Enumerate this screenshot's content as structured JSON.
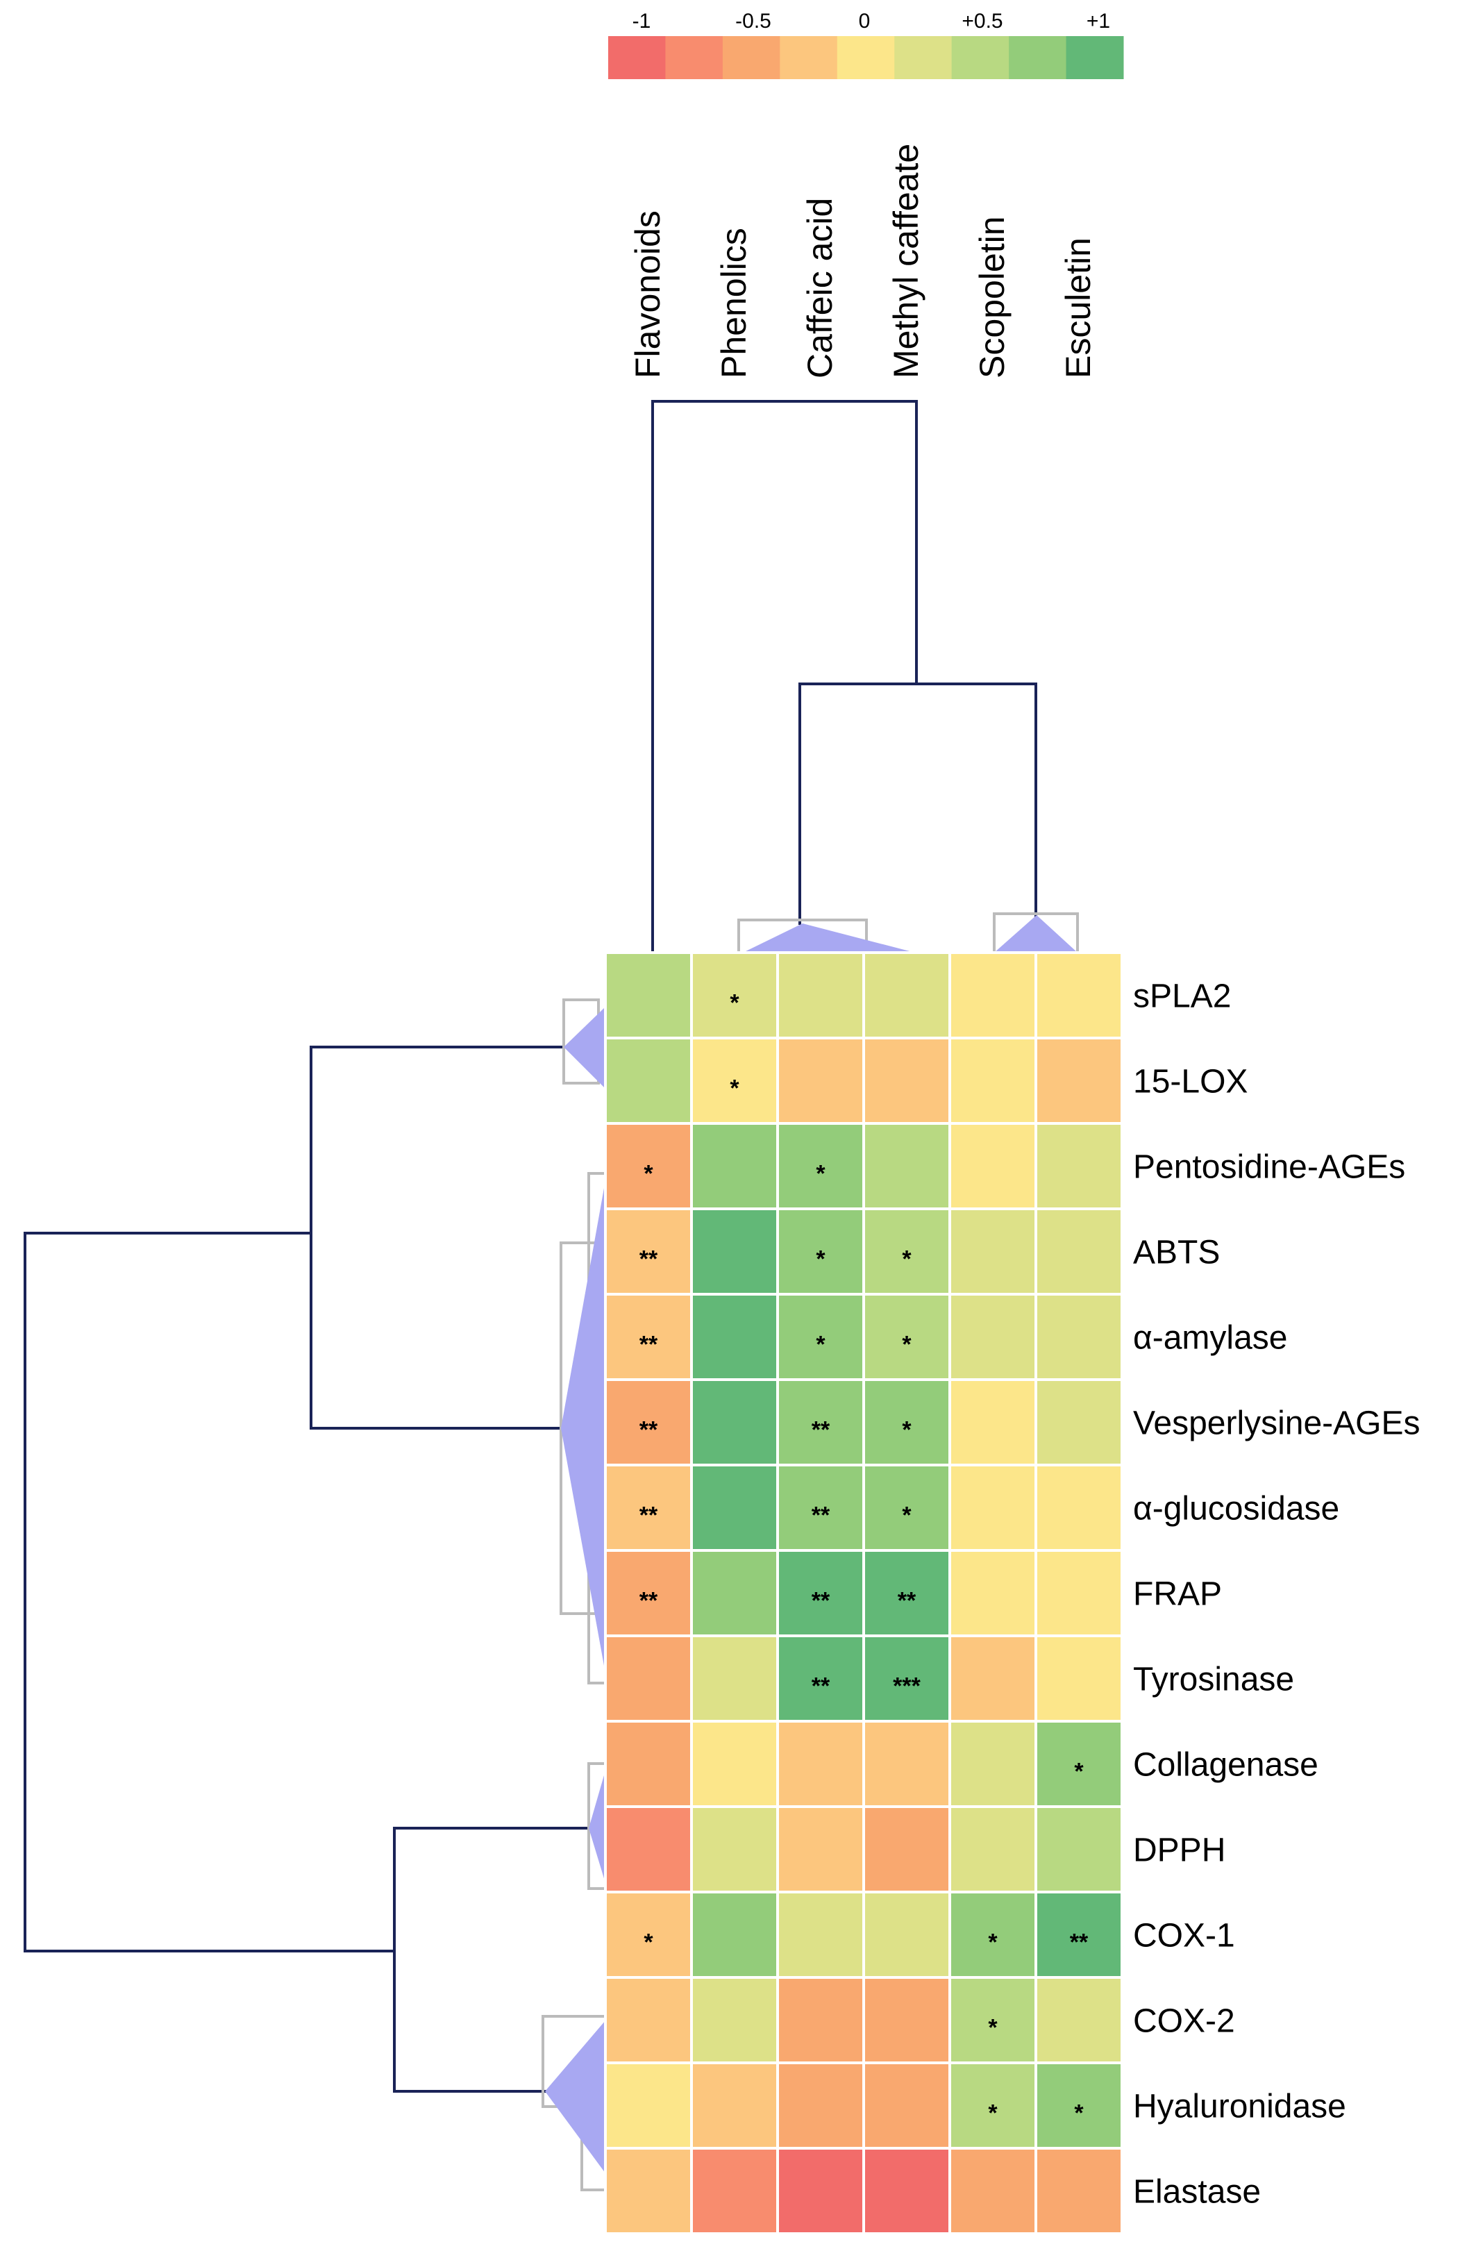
{
  "chart_data": {
    "type": "heatmap",
    "legend": {
      "colors": [
        "#f26c6a",
        "#f88c6e",
        "#f9a86f",
        "#fcc67e",
        "#fce68a",
        "#dde188",
        "#b8d982",
        "#93cc7a",
        "#62b877"
      ],
      "tick_labels": [
        "-1",
        "-0.5",
        "0",
        "+0.5",
        "+1"
      ]
    },
    "columns": [
      "Flavonoids",
      "Phenolics",
      "Caffeic acid",
      "Methyl caffeate",
      "Scopoletin",
      "Esculetin"
    ],
    "rows": [
      {
        "label": "sPLA2",
        "values": [
          0.6,
          0.3,
          0.25,
          0.2,
          0.05,
          0.05
        ],
        "sig": [
          "",
          "*",
          "",
          "",
          "",
          ""
        ]
      },
      {
        "label": "15-LOX",
        "values": [
          0.6,
          0.05,
          -0.35,
          -0.35,
          0.05,
          -0.35
        ],
        "sig": [
          "",
          "*",
          "",
          "",
          "",
          ""
        ]
      },
      {
        "label": "Pentosidine-AGEs",
        "values": [
          -0.4,
          0.8,
          0.8,
          0.4,
          0.05,
          0.3
        ],
        "sig": [
          "*",
          "",
          "*",
          "",
          "",
          ""
        ]
      },
      {
        "label": "ABTS",
        "values": [
          -0.3,
          0.95,
          0.8,
          0.6,
          0.25,
          0.3
        ],
        "sig": [
          "**",
          "",
          "*",
          "*",
          "",
          ""
        ]
      },
      {
        "label": "α-amylase",
        "values": [
          -0.35,
          0.95,
          0.8,
          0.6,
          0.25,
          0.3
        ],
        "sig": [
          "**",
          "",
          "*",
          "*",
          "",
          ""
        ]
      },
      {
        "label": "Vesperlysine-AGEs",
        "values": [
          -0.4,
          0.95,
          0.8,
          0.7,
          0.1,
          0.2
        ],
        "sig": [
          "**",
          "",
          "**",
          "*",
          "",
          ""
        ]
      },
      {
        "label": "α-glucosidase",
        "values": [
          -0.35,
          0.9,
          0.85,
          0.8,
          0.0,
          0.05
        ],
        "sig": [
          "**",
          "",
          "**",
          "*",
          "",
          ""
        ]
      },
      {
        "label": "FRAP",
        "values": [
          -0.45,
          0.8,
          0.9,
          0.9,
          -0.05,
          0.0
        ],
        "sig": [
          "**",
          "",
          "**",
          "**",
          "",
          ""
        ]
      },
      {
        "label": "Tyrosinase",
        "values": [
          -0.45,
          0.25,
          0.9,
          1.0,
          -0.35,
          -0.1
        ],
        "sig": [
          "",
          "",
          "**",
          "***",
          "",
          ""
        ]
      },
      {
        "label": "Collagenase",
        "values": [
          -0.6,
          0.1,
          -0.15,
          -0.25,
          0.35,
          0.85
        ],
        "sig": [
          "",
          "",
          "",
          "",
          "",
          "*"
        ]
      },
      {
        "label": "DPPH",
        "values": [
          -0.7,
          0.3,
          -0.35,
          -0.45,
          0.35,
          0.4
        ],
        "sig": [
          "",
          "",
          "",
          "",
          "",
          ""
        ]
      },
      {
        "label": "COX-1",
        "values": [
          -0.3,
          0.7,
          0.15,
          0.2,
          0.85,
          0.95
        ],
        "sig": [
          "*",
          "",
          "",
          "",
          "*",
          "**"
        ]
      },
      {
        "label": "COX-2",
        "values": [
          -0.3,
          0.25,
          -0.5,
          -0.5,
          0.6,
          0.15
        ],
        "sig": [
          "",
          "",
          "",
          "",
          "*",
          ""
        ]
      },
      {
        "label": "Hyaluronidase",
        "values": [
          0.05,
          -0.3,
          -0.6,
          -0.4,
          0.5,
          0.75
        ],
        "sig": [
          "",
          "",
          "",
          "",
          "*",
          "*"
        ]
      },
      {
        "label": "Elastase",
        "values": [
          -0.3,
          -0.8,
          -1.0,
          -1.0,
          -0.4,
          -0.5
        ],
        "sig": [
          "",
          "",
          "",
          "",
          "",
          ""
        ]
      }
    ],
    "grid": false
  }
}
